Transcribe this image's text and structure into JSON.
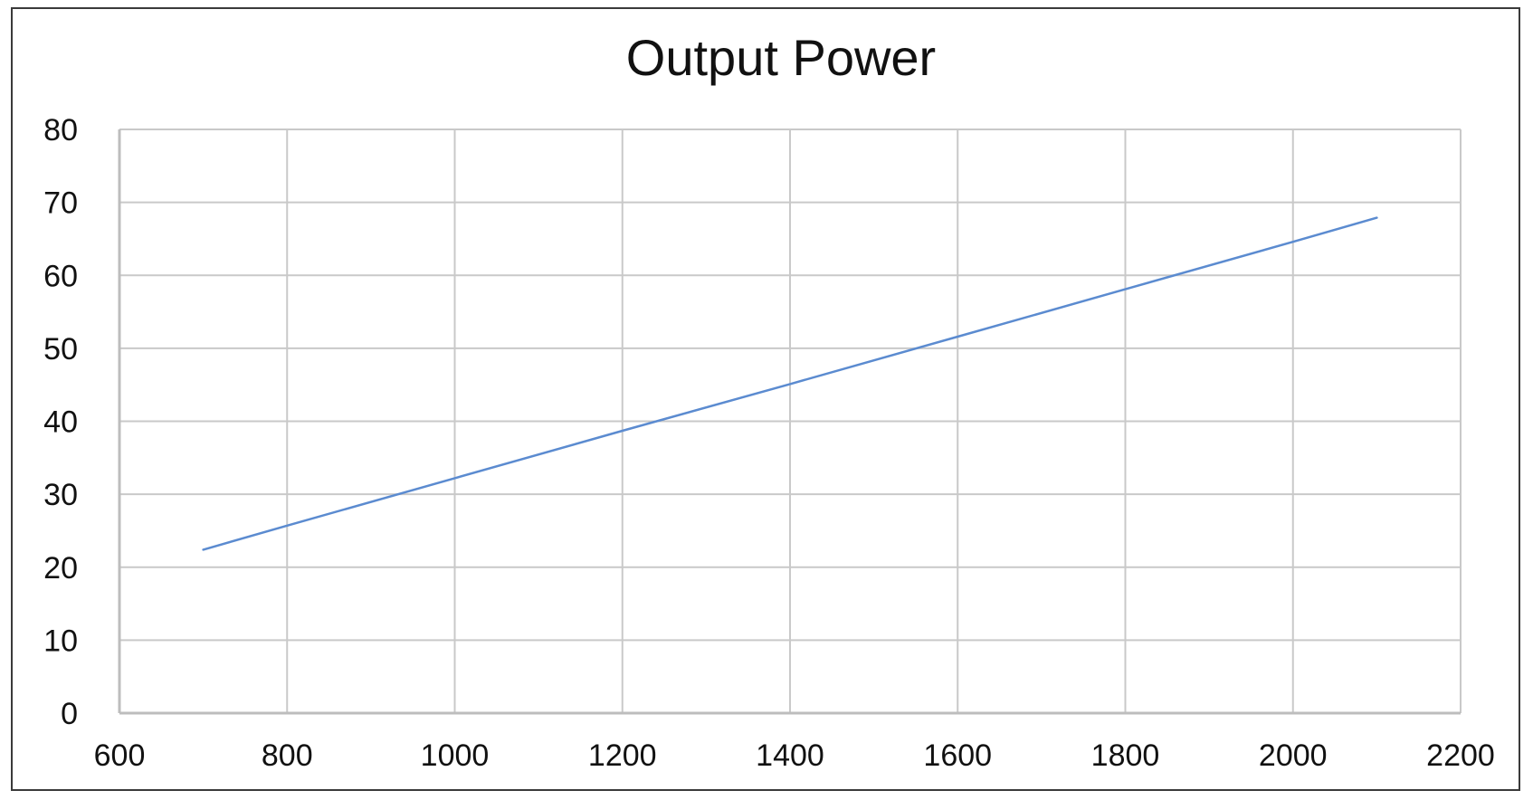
{
  "chart_data": {
    "type": "line",
    "title": "Output Power",
    "xlabel": "",
    "ylabel": "",
    "xlim": [
      600,
      2200
    ],
    "ylim": [
      0,
      80
    ],
    "x_ticks": [
      600,
      800,
      1000,
      1200,
      1400,
      1600,
      1800,
      2000,
      2200
    ],
    "y_ticks": [
      0,
      10,
      20,
      30,
      40,
      50,
      60,
      70,
      80
    ],
    "grid": true,
    "legend": "none",
    "series": [
      {
        "color": "#5b8bd0",
        "x": [
          700,
          800,
          1000,
          1200,
          1400,
          1600,
          1800,
          2000,
          2100
        ],
        "y": [
          22.4,
          25.7,
          32.2,
          38.7,
          45.1,
          51.6,
          58.1,
          64.6,
          67.9
        ]
      }
    ]
  }
}
